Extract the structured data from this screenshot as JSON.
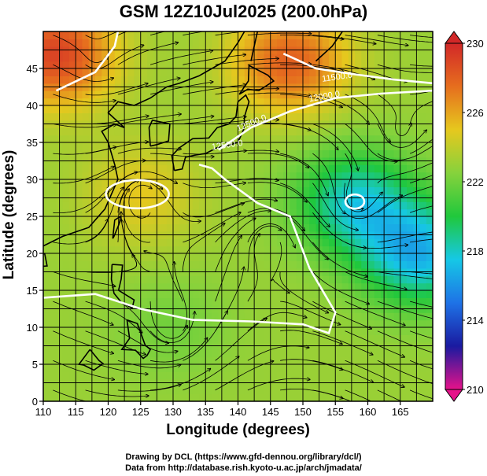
{
  "chart_data": {
    "type": "heatmap",
    "title": "GSM 12Z10Jul2025 (200.0hPa)",
    "xlabel": "Longitude (degrees)",
    "ylabel": "Latitude  (degrees)",
    "xlim": [
      110,
      170
    ],
    "ylim": [
      0,
      50
    ],
    "x_ticks": [
      110,
      115,
      120,
      125,
      130,
      135,
      140,
      145,
      150,
      155,
      160,
      165
    ],
    "y_ticks": [
      0,
      5,
      10,
      15,
      20,
      25,
      30,
      35,
      40,
      45
    ],
    "grid": true,
    "colorbar": {
      "ticks": [
        210,
        214,
        218,
        222,
        226,
        230
      ],
      "range": [
        210,
        230
      ],
      "colors": [
        "#e6128a",
        "#1a1aa0",
        "#1e72e6",
        "#16c8e6",
        "#20c83c",
        "#86d23c",
        "#e6c81e",
        "#e66e1e",
        "#d22828"
      ]
    },
    "contours": [
      {
        "level": "12500.0",
        "label": "12500.0"
      },
      {
        "level": "12000.0",
        "label": "12000.0"
      },
      {
        "level": "11500.0",
        "label": "11500.0"
      },
      {
        "level": "12500.0",
        "label": "12500.0"
      }
    ],
    "field_hotspots": [
      {
        "lon": 112,
        "lat": 47,
        "value": 229
      },
      {
        "lon": 148,
        "lat": 46,
        "value": 228
      },
      {
        "lon": 158,
        "lat": 27,
        "value": 218
      },
      {
        "lon": 168,
        "lat": 20,
        "value": 217
      },
      {
        "lon": 125,
        "lat": 28,
        "value": 225
      },
      {
        "lon": 130,
        "lat": 10,
        "value": 222
      }
    ]
  },
  "credits": {
    "line1": "Drawing by DCL (https://www.gfd-dennou.org/library/dcl/)",
    "line2": "Data from http://database.rish.kyoto-u.ac.jp/arch/jmadata/"
  }
}
